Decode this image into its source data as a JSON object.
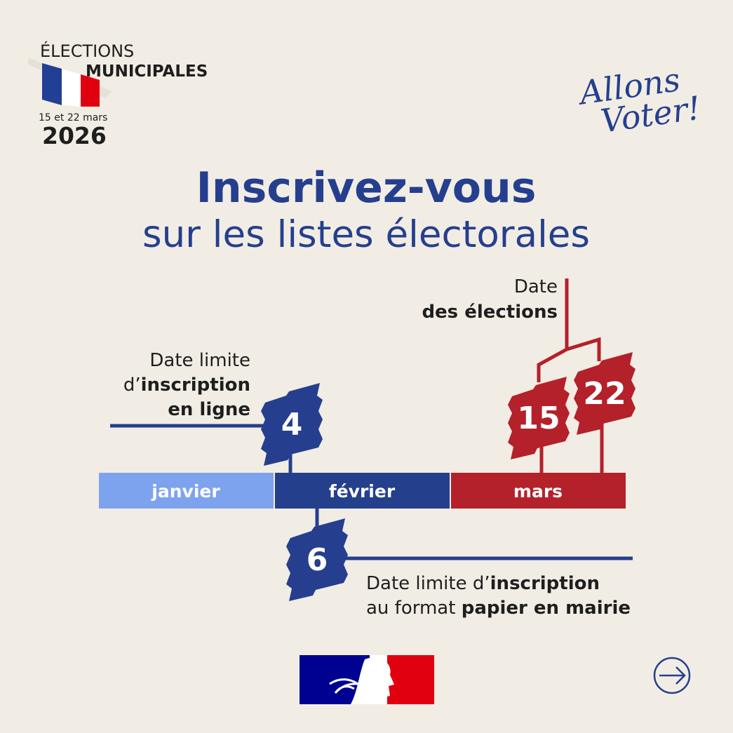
{
  "header": {
    "election": "ÉLECTIONS",
    "type": "MUNICIPALES",
    "dates": "15 et 22 mars",
    "year": "2026"
  },
  "slogan": {
    "line1": "Allons",
    "line2": "Voter!"
  },
  "title": {
    "main": "Inscrivez-vous",
    "sub": "sur les listes électorales"
  },
  "timeline": {
    "months": [
      "janvier",
      "février",
      "mars"
    ]
  },
  "online_deadline": {
    "day": "4",
    "label": [
      "Date limite",
      "d’",
      "inscription",
      "en ligne"
    ]
  },
  "election_dates": {
    "days": [
      "15",
      "22"
    ],
    "label": [
      "Date",
      "des élections"
    ]
  },
  "paper_deadline": {
    "day": "6",
    "label": [
      "Date limite d’",
      "inscription",
      "au format",
      "papier en mairie"
    ]
  }
}
